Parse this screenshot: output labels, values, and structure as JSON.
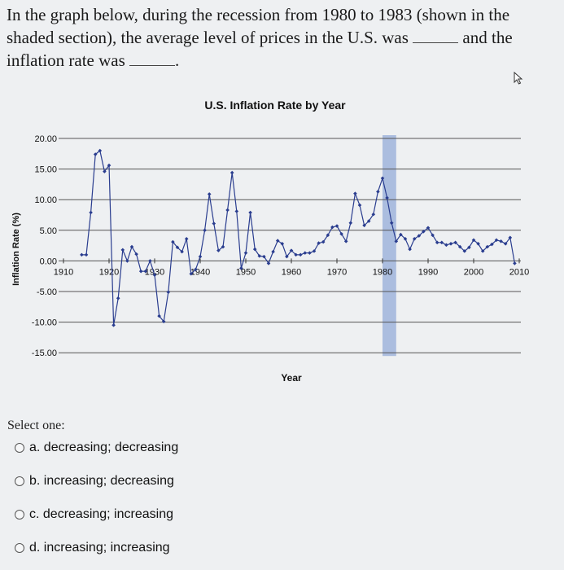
{
  "question": {
    "line1": "In the graph below, during the recession from 1980 to 1983 (shown in the",
    "line2a": "shaded section), the average level of prices in the U.S. was",
    "line2b": "and the",
    "line3a": "inflation rate was",
    "line3b": "."
  },
  "select_label": "Select one:",
  "options": [
    {
      "label": "a. decreasing; decreasing"
    },
    {
      "label": "b. increasing; decreasing"
    },
    {
      "label": "c. decreasing; increasing"
    },
    {
      "label": "d. increasing; increasing"
    }
  ],
  "chart_data": {
    "type": "line",
    "title": "U.S. Inflation Rate by Year",
    "xlabel": "Year",
    "ylabel": "Inflation Rate (%)",
    "xlim": [
      1910,
      2010
    ],
    "ylim": [
      -15,
      20
    ],
    "x_ticks": [
      "1910",
      "1920",
      "1930",
      "1940",
      "1950",
      "1960",
      "1970",
      "1980",
      "1990",
      "2000",
      "2010"
    ],
    "y_ticks": [
      "20.00",
      "15.00",
      "10.00",
      "5.00",
      "0.00",
      "-5.00",
      "-10.00",
      "-15.00"
    ],
    "grid": "horizontal",
    "shaded_region": [
      1980,
      1983
    ],
    "shade_color": "#9fb4dc",
    "line_color": "#2a3d8f",
    "x": [
      1914,
      1915,
      1916,
      1917,
      1918,
      1919,
      1920,
      1921,
      1922,
      1923,
      1924,
      1925,
      1926,
      1927,
      1928,
      1929,
      1930,
      1931,
      1932,
      1933,
      1934,
      1935,
      1936,
      1937,
      1938,
      1939,
      1940,
      1941,
      1942,
      1943,
      1944,
      1945,
      1946,
      1947,
      1948,
      1949,
      1950,
      1951,
      1952,
      1953,
      1954,
      1955,
      1956,
      1957,
      1958,
      1959,
      1960,
      1961,
      1962,
      1963,
      1964,
      1965,
      1966,
      1967,
      1968,
      1969,
      1970,
      1971,
      1972,
      1973,
      1974,
      1975,
      1976,
      1977,
      1978,
      1979,
      1980,
      1981,
      1982,
      1983,
      1984,
      1985,
      1986,
      1987,
      1988,
      1989,
      1990,
      1991,
      1992,
      1993,
      1994,
      1995,
      1996,
      1997,
      1998,
      1999,
      2000,
      2001,
      2002,
      2003,
      2004,
      2005,
      2006,
      2007,
      2008,
      2009
    ],
    "y": [
      1.0,
      1.0,
      7.9,
      17.4,
      18.0,
      14.6,
      15.6,
      -10.5,
      -6.1,
      1.8,
      0.0,
      2.3,
      1.1,
      -1.7,
      -1.7,
      0.0,
      -2.3,
      -9.0,
      -9.9,
      -5.1,
      3.1,
      2.2,
      1.5,
      3.6,
      -2.1,
      -1.4,
      0.7,
      5.0,
      10.9,
      6.1,
      1.7,
      2.3,
      8.3,
      14.4,
      8.1,
      -1.2,
      1.3,
      7.9,
      1.9,
      0.8,
      0.7,
      -0.4,
      1.5,
      3.3,
      2.8,
      0.7,
      1.7,
      1.0,
      1.0,
      1.3,
      1.3,
      1.6,
      2.9,
      3.1,
      4.2,
      5.5,
      5.7,
      4.4,
      3.2,
      6.2,
      11.0,
      9.1,
      5.8,
      6.5,
      7.6,
      11.3,
      13.5,
      10.3,
      6.2,
      3.2,
      4.3,
      3.6,
      1.9,
      3.6,
      4.1,
      4.8,
      5.4,
      4.2,
      3.0,
      3.0,
      2.6,
      2.8,
      3.0,
      2.3,
      1.6,
      2.2,
      3.4,
      2.8,
      1.6,
      2.3,
      2.7,
      3.4,
      3.2,
      2.8,
      3.8,
      -0.4
    ]
  }
}
